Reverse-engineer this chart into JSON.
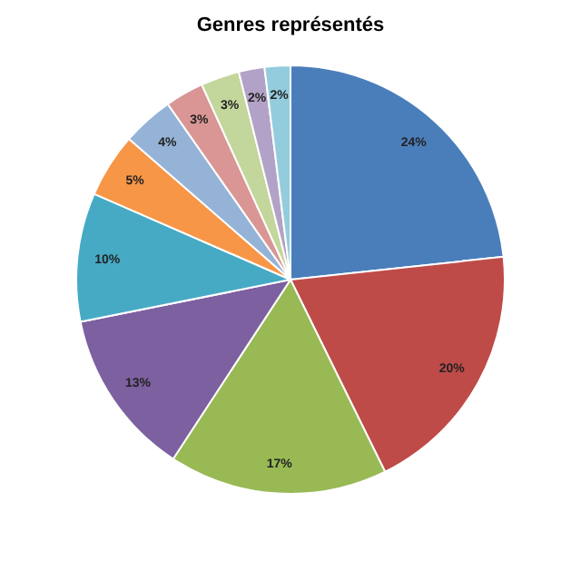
{
  "chart_data": {
    "type": "pie",
    "title": "Genres représentés",
    "categories": [
      null,
      null,
      null,
      null,
      null,
      null,
      null,
      null,
      null,
      null,
      null
    ],
    "values": [
      24,
      20,
      17,
      13,
      10,
      5,
      4,
      3,
      3,
      2,
      2
    ],
    "value_labels": [
      "24%",
      "20%",
      "17%",
      "13%",
      "10%",
      "5%",
      "4%",
      "3%",
      "3%",
      "2%",
      "2%"
    ],
    "colors": [
      "#4a7ebb",
      "#be4b48",
      "#98b954",
      "#7d60a0",
      "#46aac5",
      "#f79646",
      "#95b3d7",
      "#d99694",
      "#c3d69b",
      "#b3a2c7",
      "#93cddd"
    ],
    "legend": false
  }
}
